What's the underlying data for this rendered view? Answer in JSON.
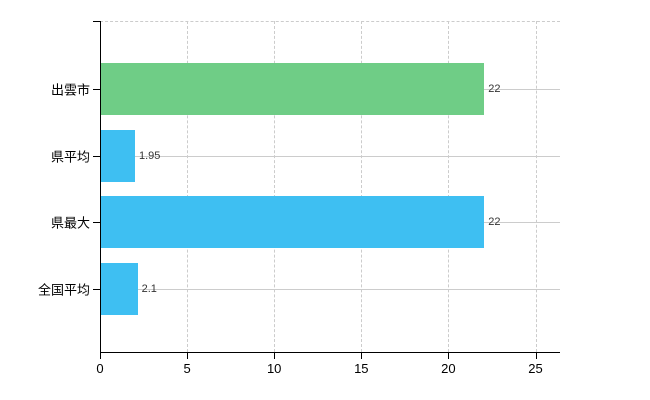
{
  "chart_data": {
    "type": "bar",
    "orientation": "horizontal",
    "title": "",
    "xlabel": "",
    "ylabel": "",
    "categories": [
      "出雲市",
      "県平均",
      "県最大",
      "全国平均"
    ],
    "values": [
      22,
      1.95,
      22,
      2.1
    ],
    "value_labels": [
      "22",
      "1.95",
      "22",
      "2.1"
    ],
    "bar_colors": [
      "#6fcd86",
      "#3ebff2",
      "#3ebff2",
      "#3ebff2"
    ],
    "x_ticks": [
      0,
      5,
      10,
      15,
      20,
      25
    ],
    "x_tick_labels": [
      "0",
      "5",
      "10",
      "15",
      "20",
      "25"
    ],
    "xlim": [
      0,
      26.4
    ],
    "grid": {
      "vertical": "dashed",
      "horizontal": "solid",
      "color": "#cccccc",
      "top_border": "dashed"
    },
    "legend": "none",
    "axis_color": "#000000",
    "value_label_color": "#333333"
  }
}
